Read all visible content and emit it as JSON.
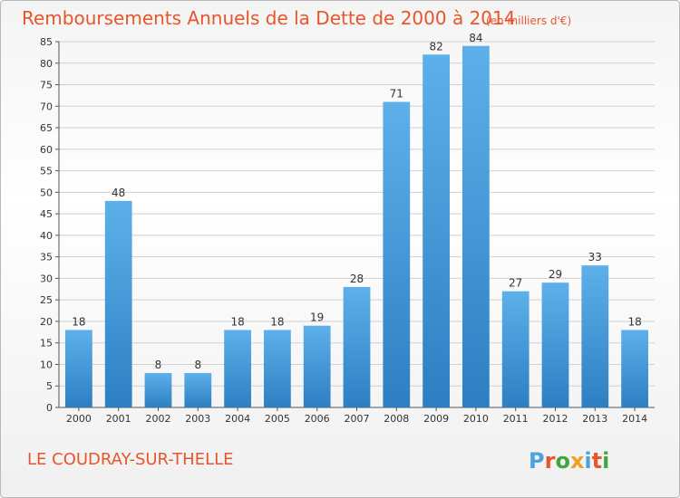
{
  "chart_data": {
    "type": "bar",
    "title": "Remboursements Annuels de la Dette de 2000 à 2014",
    "subtitle": "(en milliers d'€)",
    "categories": [
      "2000",
      "2001",
      "2002",
      "2003",
      "2004",
      "2005",
      "2006",
      "2007",
      "2008",
      "2009",
      "2010",
      "2011",
      "2012",
      "2013",
      "2014"
    ],
    "values": [
      18,
      48,
      8,
      8,
      18,
      18,
      19,
      28,
      71,
      82,
      84,
      27,
      29,
      33,
      18
    ],
    "ylim": [
      0,
      85
    ],
    "yticks": [
      0,
      5,
      10,
      15,
      20,
      25,
      30,
      35,
      40,
      45,
      50,
      55,
      60,
      65,
      70,
      75,
      80,
      85
    ],
    "grid": true,
    "bar_color_top": "#5eb0ea",
    "bar_color_bottom": "#2c7fc2",
    "grid_color": "#d0d0d0"
  },
  "footer": {
    "place": "LE COUDRAY-SUR-THELLE",
    "logo_text": "Proxiti",
    "logo_colors": [
      "#4aa3df",
      "#e8552a",
      "#3fa73f",
      "#f0a020",
      "#4aa3df",
      "#e8552a",
      "#3fa73f"
    ]
  },
  "colors": {
    "title": "#e8552a",
    "axis_text": "#333333"
  }
}
